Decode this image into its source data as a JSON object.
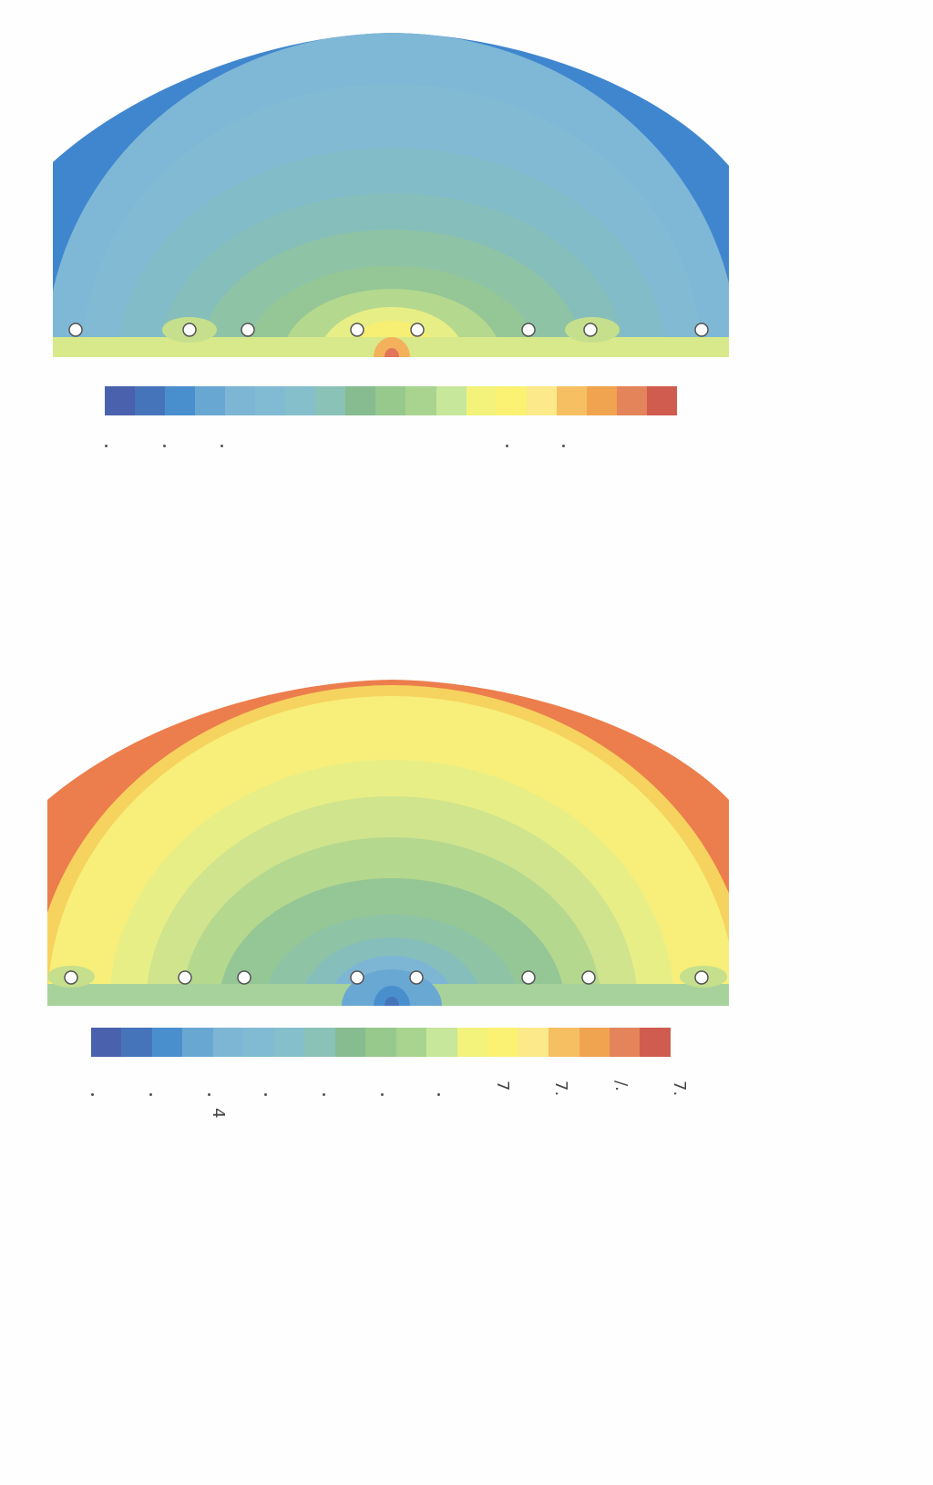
{
  "plots": [
    {
      "id": "top",
      "scheme": "cool",
      "colorbar": [
        "#4a61ad",
        "#4674ba",
        "#4a8fcd",
        "#69a7d3",
        "#7db6d4",
        "#81bbd3",
        "#85bfcb",
        "#8bc2b8",
        "#86bc8f",
        "#97c88c",
        "#a8d48f",
        "#c7e79a",
        "#f3f27a",
        "#fbf173",
        "#fbe98a",
        "#f6c062",
        "#f0a44f",
        "#e4845a",
        "#cf5c4e"
      ],
      "tick_labels": [
        "",
        "",
        "",
        "",
        "",
        ""
      ]
    },
    {
      "id": "bottom",
      "scheme": "warm",
      "colorbar": [
        "#4a61ad",
        "#4674ba",
        "#4a8fcd",
        "#69a7d3",
        "#7db6d4",
        "#81bbd3",
        "#85bfcb",
        "#8bc2b8",
        "#86bc8f",
        "#97c88c",
        "#a8d48f",
        "#c7e79a",
        "#f3f27a",
        "#fbf173",
        "#fbe98a",
        "#f6c062",
        "#f0a44f",
        "#e4845a",
        "#cf5c4e"
      ],
      "tick_labels": [
        "",
        "",
        "",
        "",
        "",
        "",
        "",
        "7",
        "7.",
        "/.",
        "7."
      ],
      "extra_label": "4"
    }
  ],
  "electrode_icon": "circle-marker-icon"
}
